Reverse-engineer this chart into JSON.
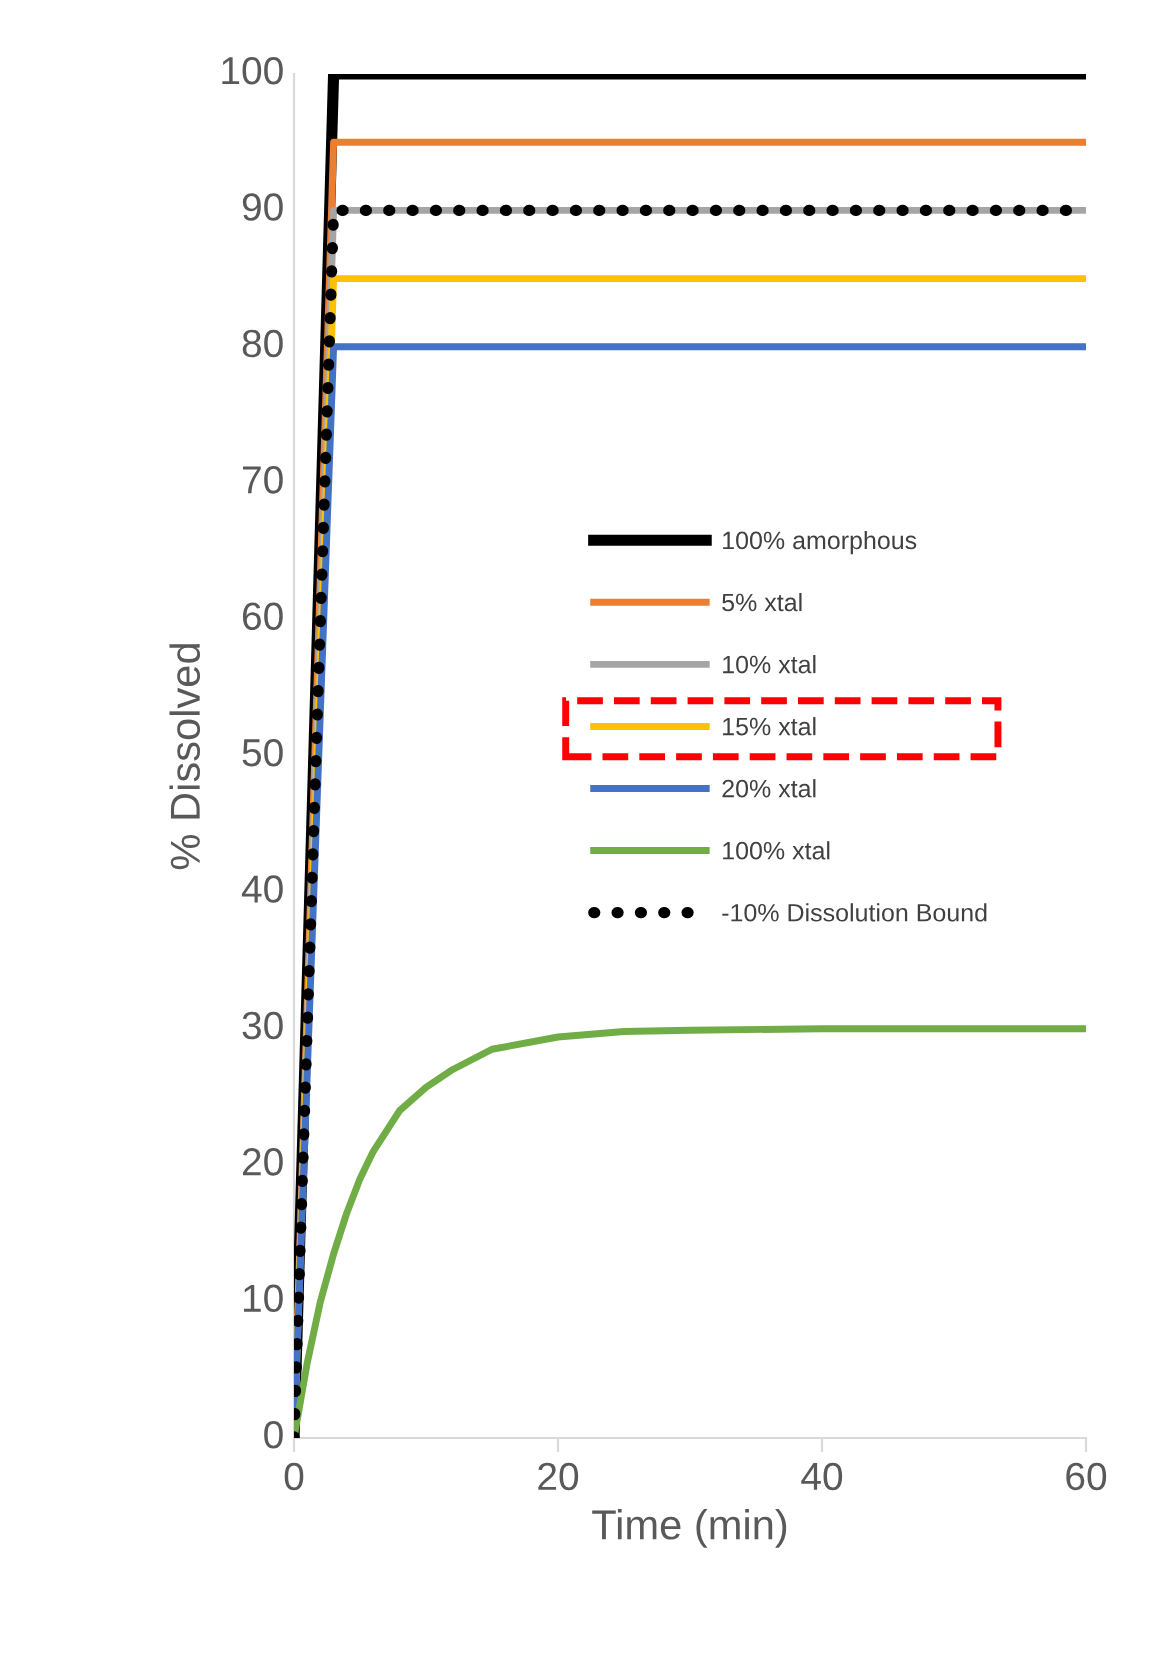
{
  "chart_data": {
    "type": "line",
    "xlabel": "Time (min)",
    "ylabel": "% Dissolved",
    "xlim": [
      0,
      60
    ],
    "xticks": [
      0,
      20,
      40,
      60
    ],
    "ylim": [
      0,
      100
    ],
    "yticks": [
      0,
      10,
      20,
      30,
      40,
      50,
      60,
      70,
      80,
      90,
      100
    ],
    "grid": false,
    "legend": "right",
    "marker": "none",
    "series": [
      {
        "name": "100% amorphous",
        "color": "#000000",
        "x": [
          0,
          3,
          60
        ],
        "values": [
          0,
          100,
          100
        ]
      },
      {
        "name": "5% xtal",
        "color": "#ed7d31",
        "x": [
          0,
          3,
          60
        ],
        "values": [
          0,
          95,
          95
        ]
      },
      {
        "name": "10% xtal",
        "color": "#a5a5a5",
        "x": [
          0,
          3,
          60
        ],
        "values": [
          0,
          90,
          90
        ]
      },
      {
        "name": "15% xtal",
        "color": "#ffc000",
        "x": [
          0,
          3,
          60
        ],
        "values": [
          0,
          85,
          85
        ]
      },
      {
        "name": "20% xtal",
        "color": "#4472c4",
        "x": [
          0,
          3,
          60
        ],
        "values": [
          0,
          80,
          80
        ]
      },
      {
        "name": "100% xtal",
        "color": "#70ad47",
        "x": [
          0,
          1,
          2,
          3,
          4,
          5,
          6,
          8,
          10,
          12,
          15,
          20,
          25,
          30,
          40,
          60
        ],
        "values": [
          0,
          5.5,
          10,
          13.5,
          16.5,
          19,
          21,
          24,
          25.7,
          27,
          28.5,
          29.4,
          29.8,
          29.9,
          30,
          30
        ]
      },
      {
        "name": "-10% Dissolution Bound",
        "color": "#000000",
        "line_style": "dotted",
        "x": [
          0,
          3,
          60
        ],
        "values": [
          0,
          90,
          90
        ]
      }
    ]
  }
}
